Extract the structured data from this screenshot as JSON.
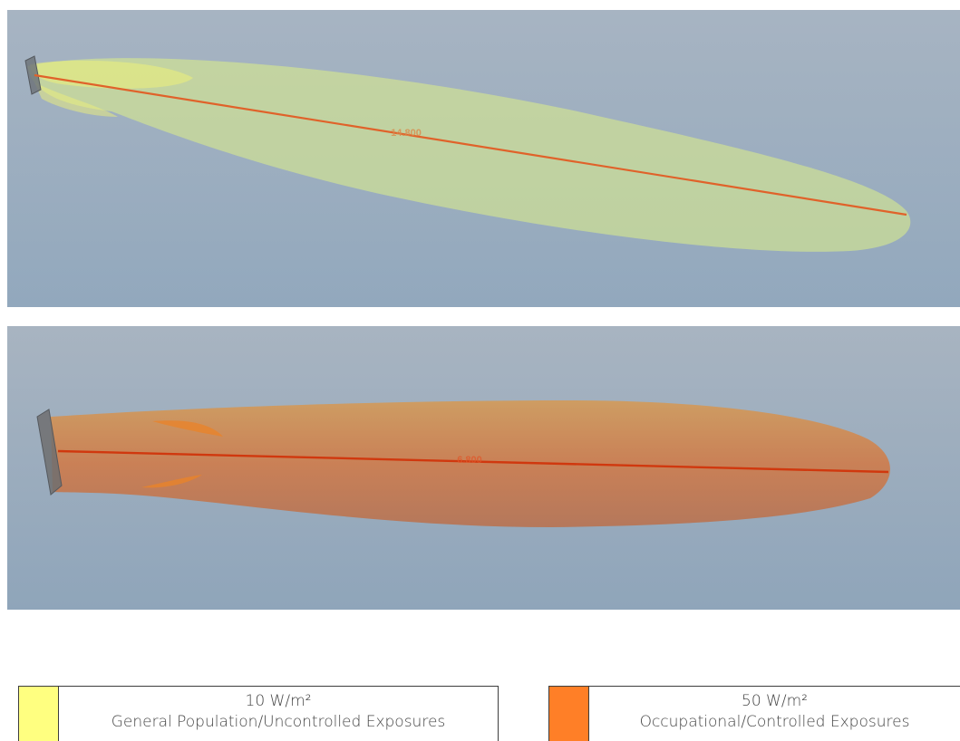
{
  "views": {
    "top": {
      "measurement_label": "14.800",
      "fill_color": "#d9e88a",
      "line_color": "#d85a22"
    },
    "bottom": {
      "measurement_label": "6.800",
      "fill_color": "#d8824a",
      "line_color": "#cc3a10"
    },
    "background_color": "#98aebf"
  },
  "legend": [
    {
      "value": "10 W/m²",
      "description": "General Population/Uncontrolled Exposures",
      "color": "#ffff80"
    },
    {
      "value": "50 W/m²",
      "description": "Occupational/Controlled Exposures",
      "color": "#ff7f27"
    }
  ]
}
